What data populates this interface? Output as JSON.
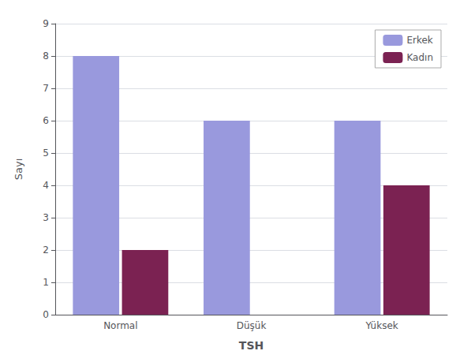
{
  "chart_data": {
    "type": "bar",
    "categories": [
      "Normal",
      "Düşük",
      "Yüksek"
    ],
    "series": [
      {
        "name": "Erkek",
        "color": "#9999dd",
        "values": [
          8,
          6,
          6
        ]
      },
      {
        "name": "Kadın",
        "color": "#7b2252",
        "values": [
          2,
          0,
          4
        ]
      }
    ],
    "xlabel": "TSH",
    "ylabel": "Sayı",
    "ylim": [
      0,
      9
    ],
    "yticks": [
      0,
      1,
      2,
      3,
      4,
      5,
      6,
      7,
      8,
      9
    ],
    "grid": true,
    "legend": "upper right"
  }
}
